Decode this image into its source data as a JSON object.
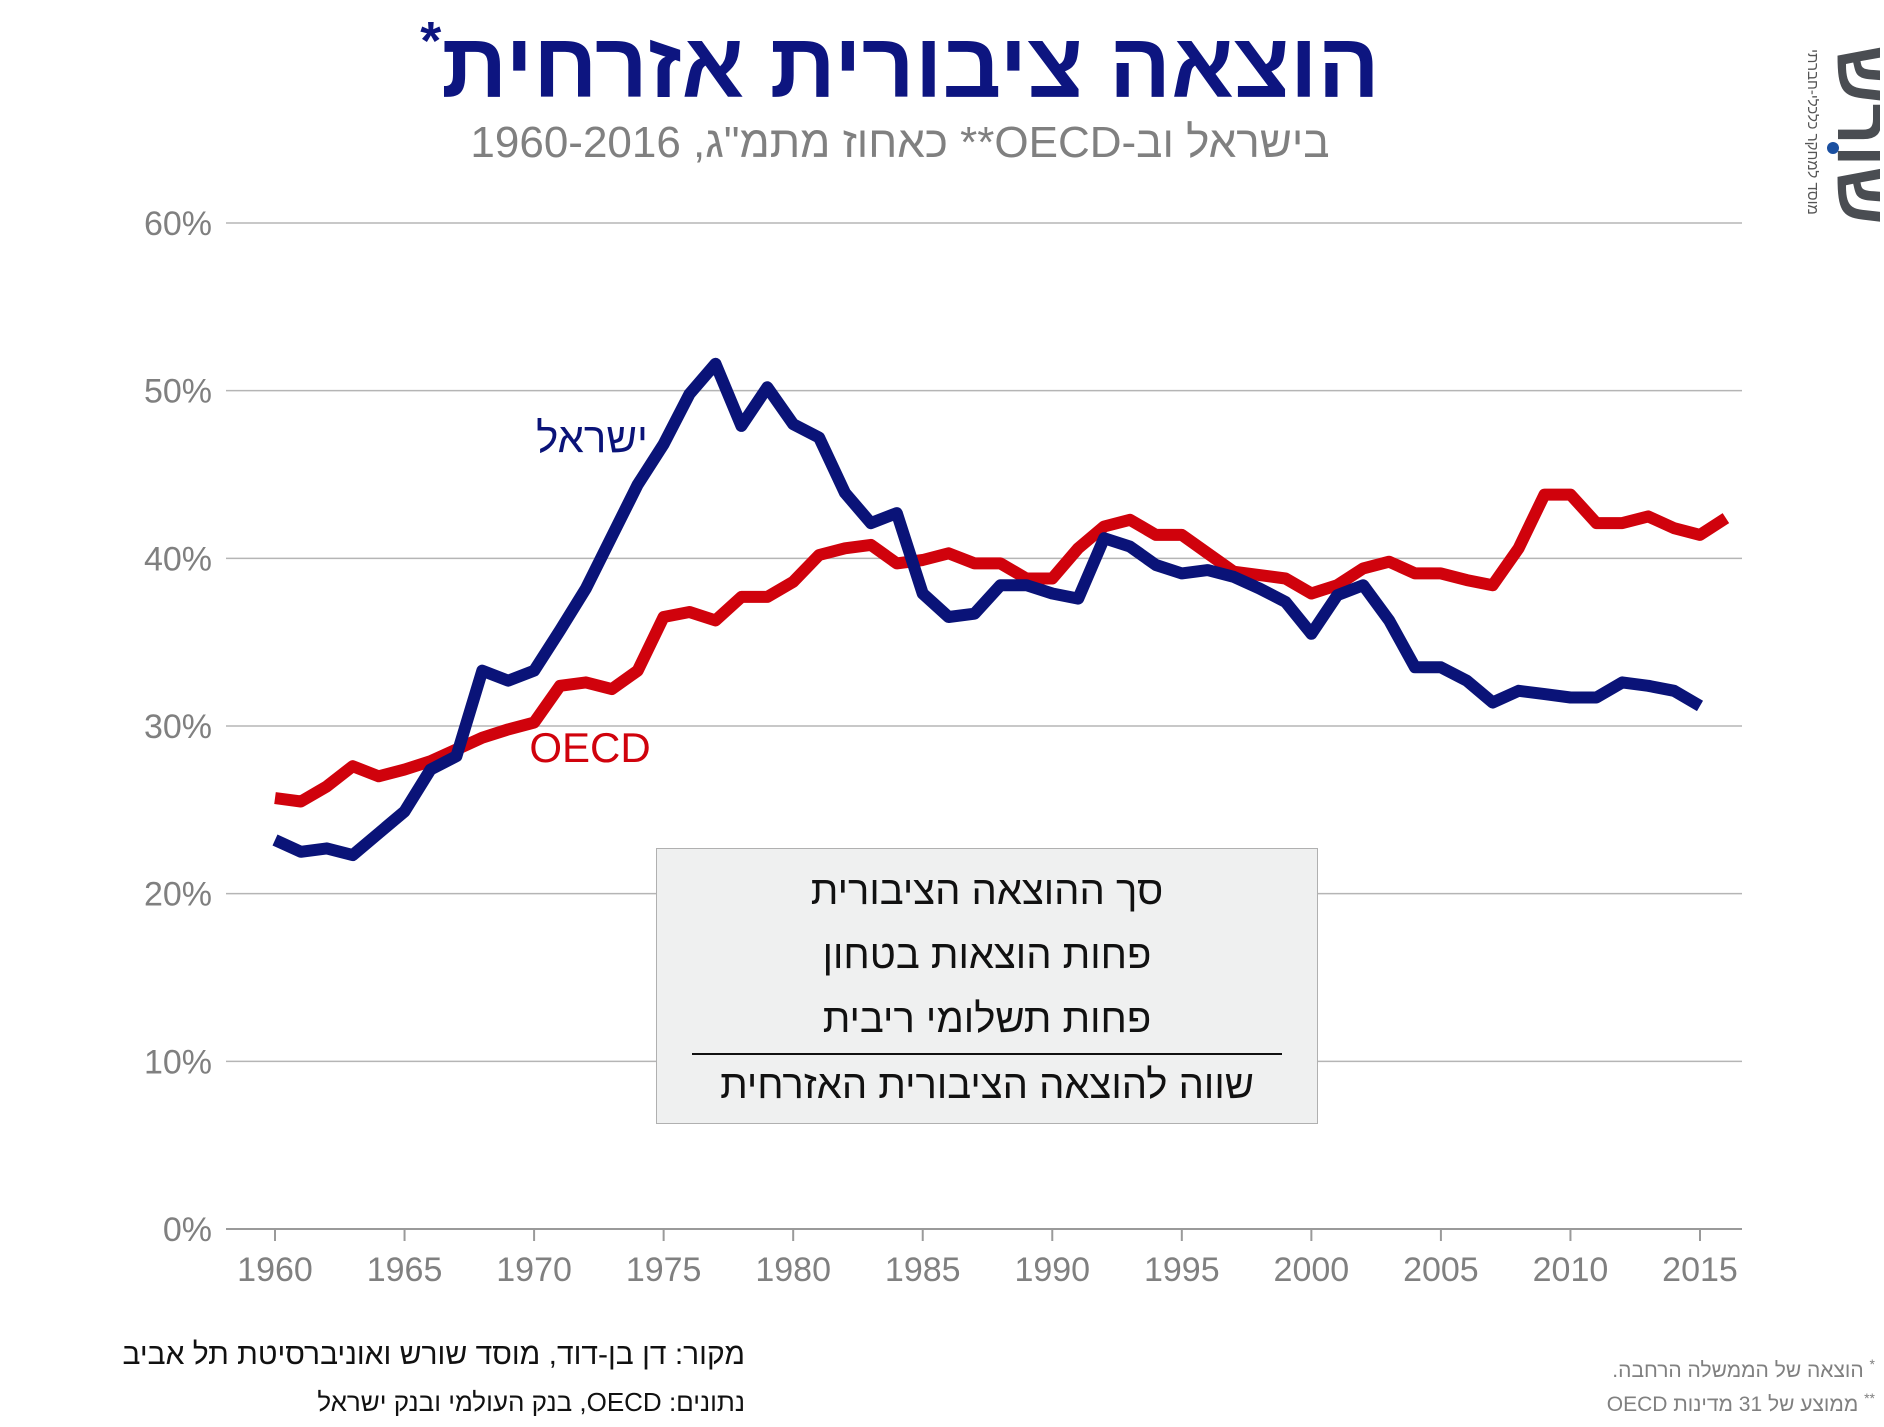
{
  "title": "הוצאה ציבורית אזרחית",
  "title_mark": "*",
  "subtitle": "בישראל וב-OECD** כאחוז מתמ\"ג, 1960-2016",
  "logo_text": "שורש",
  "logo_tagline": "מוסד למחקר כלכלי-חברתי",
  "colors": {
    "israel": "#0a1378",
    "oecd": "#d0020c",
    "grid": "#b5b5b5",
    "tick_text": "#808080"
  },
  "chart_data": {
    "type": "line",
    "xlim": [
      1960,
      2016
    ],
    "ylim": [
      0,
      60
    ],
    "yticks": [
      "0%",
      "10%",
      "20%",
      "30%",
      "40%",
      "50%",
      "60%"
    ],
    "xticks": [
      "1960",
      "1965",
      "1970",
      "1975",
      "1980",
      "1985",
      "1990",
      "1995",
      "2000",
      "2005",
      "2010",
      "2015"
    ],
    "grid": "horizontal",
    "series": [
      {
        "name": "ישראל",
        "color": "#0a1378",
        "x": [
          1960,
          1961,
          1962,
          1963,
          1964,
          1965,
          1966,
          1967,
          1968,
          1969,
          1970,
          1971,
          1972,
          1973,
          1974,
          1975,
          1976,
          1977,
          1978,
          1979,
          1980,
          1981,
          1982,
          1983,
          1984,
          1985,
          1986,
          1987,
          1988,
          1989,
          1990,
          1991,
          1992,
          1993,
          1994,
          1995,
          1996,
          1997,
          1998,
          1999,
          2000,
          2001,
          2002,
          2003,
          2004,
          2005,
          2006,
          2007,
          2008,
          2009,
          2010,
          2011,
          2012,
          2013,
          2014,
          2015
        ],
        "y": [
          23.2,
          22.5,
          22.7,
          22.3,
          23.6,
          24.9,
          27.4,
          28.2,
          33.3,
          32.7,
          33.3,
          35.7,
          38.2,
          41.3,
          44.4,
          46.8,
          49.8,
          51.6,
          47.9,
          50.2,
          48.0,
          47.2,
          43.9,
          42.1,
          42.7,
          37.9,
          36.5,
          36.7,
          38.4,
          38.4,
          37.9,
          37.6,
          41.2,
          40.7,
          39.6,
          39.1,
          39.3,
          38.9,
          38.2,
          37.4,
          35.5,
          37.8,
          38.4,
          36.3,
          33.5,
          33.5,
          32.7,
          31.4,
          32.1,
          31.9,
          31.7,
          31.7,
          32.6,
          32.4,
          32.1,
          31.2
        ]
      },
      {
        "name": "OECD",
        "color": "#d0020c",
        "x": [
          1960,
          1961,
          1962,
          1963,
          1964,
          1965,
          1966,
          1967,
          1968,
          1969,
          1970,
          1971,
          1972,
          1973,
          1974,
          1975,
          1976,
          1977,
          1978,
          1979,
          1980,
          1981,
          1982,
          1983,
          1984,
          1985,
          1986,
          1987,
          1988,
          1989,
          1990,
          1991,
          1992,
          1993,
          1994,
          1995,
          1996,
          1997,
          1998,
          1999,
          2000,
          2001,
          2002,
          2003,
          2004,
          2005,
          2006,
          2007,
          2008,
          2009,
          2010,
          2011,
          2012,
          2013,
          2014,
          2015,
          2016
        ],
        "y": [
          25.7,
          25.5,
          26.4,
          27.6,
          27.0,
          27.4,
          27.9,
          28.6,
          29.3,
          29.8,
          30.2,
          32.4,
          32.6,
          32.2,
          33.3,
          36.5,
          36.8,
          36.3,
          37.7,
          37.7,
          38.6,
          40.2,
          40.6,
          40.8,
          39.7,
          39.9,
          40.3,
          39.7,
          39.7,
          38.8,
          38.8,
          40.6,
          41.9,
          42.3,
          41.4,
          41.4,
          40.3,
          39.2,
          39.0,
          38.8,
          37.9,
          38.4,
          39.4,
          39.8,
          39.1,
          39.1,
          38.7,
          38.4,
          40.6,
          43.8,
          43.8,
          42.1,
          42.1,
          42.5,
          41.8,
          41.4,
          42.4
        ]
      }
    ],
    "annotations": [
      "ישראל",
      "OECD"
    ]
  },
  "legend_box": {
    "line1": "סך ההוצאה הציבורית",
    "line2": "פחות הוצאות בטחון",
    "line3": "פחות תשלומי ריבית",
    "line4": "שווה להוצאה הציבורית האזרחית"
  },
  "source": {
    "line1": "מקור:  דן בן-דוד,  מוסד שורש ואוניברסיטת תל אביב",
    "line2": "נתונים: OECD, בנק העולמי ובנק ישראל"
  },
  "notes": {
    "note1_mark": "*",
    "note1": "הוצאה של הממשלה הרחבה.",
    "note2_mark": "**",
    "note2": "ממוצע של 31 מדינות OECD"
  }
}
